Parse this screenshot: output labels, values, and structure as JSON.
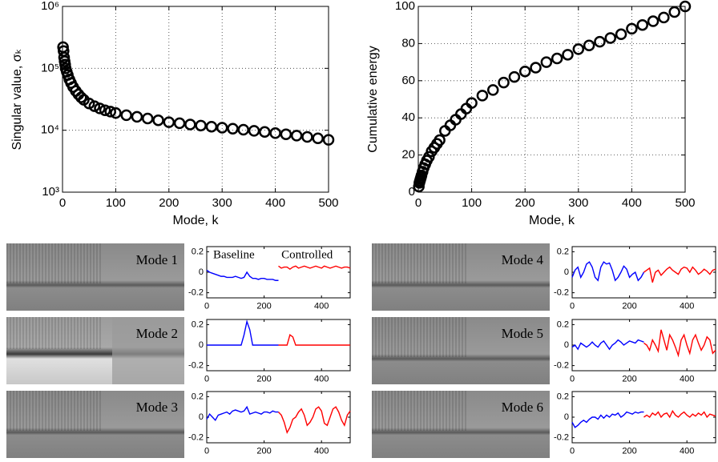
{
  "chart_data": [
    {
      "type": "scatter",
      "x_label": "Mode, k",
      "y_label": "Singular value, σₖ",
      "log_y": true,
      "grid": true,
      "color": "#000000",
      "xlim": [
        0,
        500
      ],
      "xticks": [
        0,
        100,
        200,
        300,
        400,
        500
      ],
      "ylim": [
        1000,
        1000000
      ],
      "yticks": [
        {
          "value": 1000,
          "label": "10³"
        },
        {
          "value": 10000,
          "label": "10⁴"
        },
        {
          "value": 100000,
          "label": "10⁵"
        },
        {
          "value": 1000000,
          "label": "10⁶"
        }
      ],
      "x": [
        1,
        2,
        3,
        4,
        5,
        6,
        8,
        10,
        13,
        16,
        20,
        25,
        30,
        35,
        40,
        50,
        60,
        70,
        80,
        90,
        100,
        120,
        140,
        160,
        180,
        200,
        220,
        240,
        260,
        280,
        300,
        320,
        340,
        360,
        380,
        400,
        420,
        440,
        460,
        480,
        500
      ],
      "values": [
        220000,
        190000,
        150000,
        130000,
        115000,
        100000,
        88000,
        78000,
        66000,
        58000,
        50000,
        43000,
        38000,
        34000,
        31000,
        27000,
        24500,
        22500,
        21000,
        20000,
        19000,
        17500,
        16500,
        15500,
        14500,
        13500,
        13000,
        12400,
        11900,
        11400,
        11000,
        10600,
        10200,
        9800,
        9400,
        9000,
        8600,
        8200,
        7800,
        7400,
        7000
      ]
    },
    {
      "type": "scatter",
      "x_label": "Mode, k",
      "y_label": "Cumulative energy",
      "log_y": false,
      "grid": true,
      "color": "#000000",
      "xlim": [
        0,
        500
      ],
      "xticks": [
        0,
        100,
        200,
        300,
        400,
        500
      ],
      "ylim": [
        0,
        100
      ],
      "yticks": [
        0,
        20,
        40,
        60,
        80,
        100
      ],
      "x": [
        1,
        2,
        3,
        4,
        5,
        6,
        8,
        10,
        13,
        16,
        20,
        25,
        30,
        35,
        40,
        50,
        60,
        70,
        80,
        90,
        100,
        120,
        140,
        160,
        180,
        200,
        220,
        240,
        260,
        280,
        300,
        320,
        340,
        360,
        380,
        400,
        420,
        440,
        460,
        480,
        500
      ],
      "values": [
        3,
        5,
        6,
        7,
        8,
        9,
        11,
        13,
        15,
        17,
        19,
        22,
        24,
        26,
        28,
        33,
        36,
        39,
        42,
        45,
        48,
        52,
        55,
        59,
        62,
        65,
        67,
        70,
        72,
        74,
        77,
        79,
        81,
        83,
        85,
        88,
        90,
        92,
        94,
        97,
        100
      ]
    },
    {
      "type": "line",
      "xlim": [
        0,
        500
      ],
      "xticks": [
        0,
        200,
        400
      ],
      "ylim": [
        -0.25,
        0.25
      ],
      "yticks": [
        -0.2,
        0,
        0.2
      ],
      "grid": false,
      "series": [
        {
          "name": "Baseline",
          "color": "#0000ff",
          "x": [
            0,
            10,
            20,
            30,
            40,
            50,
            60,
            70,
            80,
            90,
            100,
            110,
            120,
            130,
            140,
            150,
            160,
            170,
            180,
            190,
            200,
            210,
            220,
            230,
            240,
            250
          ],
          "values": [
            0.02,
            0.0,
            -0.01,
            -0.02,
            -0.03,
            -0.04,
            -0.04,
            -0.05,
            -0.05,
            -0.05,
            -0.04,
            -0.05,
            -0.06,
            -0.05,
            0.0,
            -0.04,
            -0.06,
            -0.06,
            -0.07,
            -0.06,
            -0.06,
            -0.07,
            -0.07,
            -0.07,
            -0.08,
            -0.08
          ]
        },
        {
          "name": "Controlled",
          "color": "#ff0000",
          "x": [
            250,
            260,
            270,
            280,
            290,
            300,
            310,
            320,
            330,
            340,
            350,
            360,
            370,
            380,
            390,
            400,
            410,
            420,
            430,
            440,
            450,
            460,
            470,
            480,
            490,
            500
          ],
          "values": [
            0.06,
            0.04,
            0.05,
            0.05,
            0.03,
            0.05,
            0.06,
            0.04,
            0.05,
            0.06,
            0.05,
            0.04,
            0.05,
            0.06,
            0.05,
            0.04,
            0.06,
            0.05,
            0.04,
            0.05,
            0.06,
            0.05,
            0.04,
            0.05,
            0.05,
            0.04
          ]
        }
      ]
    },
    {
      "type": "line",
      "xlim": [
        0,
        500
      ],
      "xticks": [
        0,
        200,
        400
      ],
      "ylim": [
        -0.25,
        0.25
      ],
      "yticks": [
        -0.2,
        0,
        0.2
      ],
      "grid": false,
      "series": [
        {
          "color": "#0000ff",
          "x": [
            0,
            10,
            20,
            30,
            40,
            50,
            60,
            70,
            80,
            90,
            100,
            110,
            120,
            130,
            140,
            150,
            160,
            170,
            180,
            190,
            200,
            210,
            220,
            230,
            240,
            250
          ],
          "values": [
            0,
            0,
            0,
            0,
            0,
            0,
            0,
            0,
            0,
            0,
            0,
            0,
            0,
            0.1,
            0.23,
            0.15,
            0.0,
            0,
            0,
            0,
            0,
            0,
            0,
            0,
            0,
            0
          ]
        },
        {
          "color": "#ff0000",
          "x": [
            250,
            260,
            270,
            280,
            290,
            300,
            310,
            320,
            330,
            340,
            350,
            360,
            370,
            380,
            390,
            400,
            410,
            420,
            430,
            440,
            450,
            460,
            470,
            480,
            490,
            500
          ],
          "values": [
            0,
            0,
            0,
            0,
            0.1,
            0.08,
            0,
            0,
            0,
            0,
            0,
            0,
            0,
            0,
            0,
            0,
            0,
            0,
            0,
            0,
            0,
            0,
            0,
            0,
            0,
            0
          ]
        }
      ]
    },
    {
      "type": "line",
      "xlim": [
        0,
        500
      ],
      "xticks": [
        0,
        200,
        400
      ],
      "ylim": [
        -0.25,
        0.25
      ],
      "yticks": [
        -0.2,
        0,
        0.2
      ],
      "grid": false,
      "series": [
        {
          "color": "#0000ff",
          "x": [
            0,
            10,
            20,
            30,
            40,
            50,
            60,
            70,
            80,
            90,
            100,
            110,
            120,
            130,
            140,
            150,
            160,
            170,
            180,
            190,
            200,
            210,
            220,
            230,
            240,
            250
          ],
          "values": [
            -0.02,
            0.03,
            0.0,
            -0.03,
            0.02,
            0.03,
            0.04,
            0.05,
            0.03,
            0.06,
            0.07,
            0.06,
            0.05,
            0.06,
            0.1,
            0.03,
            0.04,
            0.05,
            0.04,
            0.03,
            0.05,
            0.05,
            0.04,
            0.06,
            0.05,
            0.05
          ]
        },
        {
          "color": "#ff0000",
          "x": [
            250,
            260,
            270,
            280,
            290,
            300,
            310,
            320,
            330,
            340,
            350,
            360,
            370,
            380,
            390,
            400,
            410,
            420,
            430,
            440,
            450,
            460,
            470,
            480,
            490,
            500
          ],
          "values": [
            0.05,
            0.02,
            -0.05,
            -0.15,
            -0.1,
            -0.02,
            0.0,
            0.05,
            0.08,
            0.02,
            -0.08,
            -0.05,
            0.0,
            0.08,
            0.1,
            0.06,
            -0.06,
            -0.08,
            0.0,
            0.08,
            0.1,
            0.05,
            -0.03,
            -0.08,
            0.02,
            0.06
          ]
        }
      ]
    },
    {
      "type": "line",
      "xlim": [
        0,
        500
      ],
      "xticks": [
        0,
        200,
        400
      ],
      "ylim": [
        -0.25,
        0.25
      ],
      "yticks": [
        -0.2,
        0,
        0.2
      ],
      "grid": false,
      "series": [
        {
          "color": "#0000ff",
          "x": [
            0,
            10,
            20,
            30,
            40,
            50,
            60,
            70,
            80,
            90,
            100,
            110,
            120,
            130,
            140,
            150,
            160,
            170,
            180,
            190,
            200,
            210,
            220,
            230,
            240,
            250
          ],
          "values": [
            -0.05,
            0.02,
            0.05,
            -0.05,
            0.0,
            0.08,
            0.1,
            0.05,
            -0.05,
            -0.08,
            0.05,
            0.1,
            0.08,
            0.09,
            0.02,
            -0.08,
            -0.05,
            0.0,
            0.06,
            0.03,
            -0.05,
            -0.02,
            0.0,
            -0.08,
            -0.05,
            0.0
          ]
        },
        {
          "color": "#ff0000",
          "x": [
            250,
            260,
            270,
            280,
            290,
            300,
            310,
            320,
            330,
            340,
            350,
            360,
            370,
            380,
            390,
            400,
            410,
            420,
            430,
            440,
            450,
            460,
            470,
            480,
            490,
            500
          ],
          "values": [
            0.0,
            0.02,
            0.04,
            -0.1,
            0.0,
            0.02,
            -0.03,
            0.0,
            0.03,
            0.05,
            0.02,
            0.0,
            -0.02,
            0.03,
            0.05,
            0.04,
            0.0,
            0.05,
            0.02,
            -0.02,
            0.0,
            0.03,
            0.01,
            -0.02,
            0.02,
            0.03
          ]
        }
      ]
    },
    {
      "type": "line",
      "xlim": [
        0,
        500
      ],
      "xticks": [
        0,
        200,
        400
      ],
      "ylim": [
        -0.25,
        0.25
      ],
      "yticks": [
        -0.2,
        0,
        0.2
      ],
      "grid": false,
      "series": [
        {
          "color": "#0000ff",
          "x": [
            0,
            10,
            20,
            30,
            40,
            50,
            60,
            70,
            80,
            90,
            100,
            110,
            120,
            130,
            140,
            150,
            160,
            170,
            180,
            190,
            200,
            210,
            220,
            230,
            240,
            250
          ],
          "values": [
            -0.02,
            0.0,
            -0.04,
            0.02,
            0.0,
            -0.02,
            0.0,
            0.03,
            0.0,
            -0.02,
            0.02,
            0.04,
            0.0,
            -0.04,
            0.0,
            0.02,
            0.05,
            0.03,
            0.0,
            0.02,
            0.04,
            0.03,
            0.02,
            0.05,
            0.04,
            0.03
          ]
        },
        {
          "color": "#ff0000",
          "x": [
            250,
            260,
            270,
            280,
            290,
            300,
            310,
            320,
            330,
            340,
            350,
            360,
            370,
            380,
            390,
            400,
            410,
            420,
            430,
            440,
            450,
            460,
            470,
            480,
            490,
            500
          ],
          "values": [
            0.02,
            0.0,
            -0.05,
            0.05,
            0.0,
            -0.06,
            0.15,
            0.05,
            -0.05,
            0.1,
            0.05,
            -0.02,
            -0.1,
            0.05,
            0.1,
            0.0,
            -0.08,
            0.05,
            0.1,
            0.02,
            -0.05,
            0.0,
            0.08,
            0.05,
            -0.08,
            -0.05
          ]
        }
      ]
    },
    {
      "type": "line",
      "xlim": [
        0,
        500
      ],
      "xticks": [
        0,
        200,
        400
      ],
      "ylim": [
        -0.25,
        0.25
      ],
      "yticks": [
        -0.2,
        0,
        0.2
      ],
      "grid": false,
      "series": [
        {
          "color": "#0000ff",
          "x": [
            0,
            10,
            20,
            30,
            40,
            50,
            60,
            70,
            80,
            90,
            100,
            110,
            120,
            130,
            140,
            150,
            160,
            170,
            180,
            190,
            200,
            210,
            220,
            230,
            240,
            250
          ],
          "values": [
            -0.05,
            -0.1,
            -0.08,
            -0.05,
            -0.03,
            -0.05,
            -0.02,
            0.0,
            0.0,
            -0.02,
            0.02,
            -0.01,
            0.02,
            0.0,
            0.03,
            0.02,
            0.04,
            0.0,
            0.02,
            0.05,
            0.04,
            0.03,
            0.05,
            0.04,
            0.05,
            0.05
          ]
        },
        {
          "color": "#ff0000",
          "x": [
            250,
            260,
            270,
            280,
            290,
            300,
            310,
            320,
            330,
            340,
            350,
            360,
            370,
            380,
            390,
            400,
            410,
            420,
            430,
            440,
            450,
            460,
            470,
            480,
            490,
            500
          ],
          "values": [
            0.0,
            0.02,
            0.0,
            0.04,
            0.02,
            0.05,
            0.0,
            0.03,
            0.04,
            0.0,
            0.06,
            0.02,
            0.0,
            0.03,
            0.05,
            0.02,
            0.0,
            0.03,
            0.01,
            0.04,
            0.02,
            0.05,
            0.0,
            0.03,
            0.02,
            0.01
          ]
        }
      ]
    }
  ],
  "images": [
    {
      "label": "Mode 1"
    },
    {
      "label": "Mode 2"
    },
    {
      "label": "Mode 3"
    },
    {
      "label": "Mode 4"
    },
    {
      "label": "Mode 5"
    },
    {
      "label": "Mode 6"
    }
  ]
}
